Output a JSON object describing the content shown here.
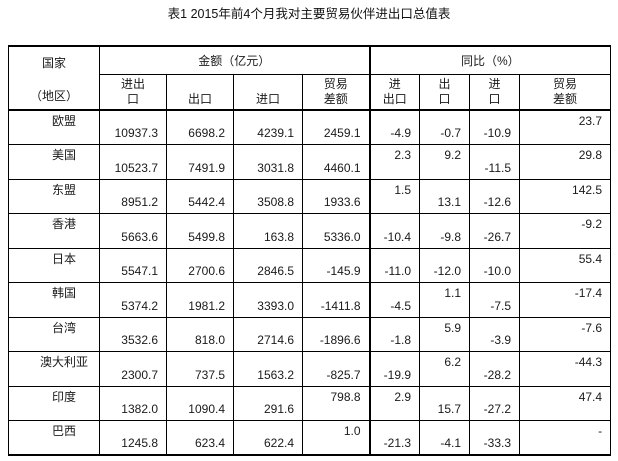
{
  "page": {
    "background": "#ffffff",
    "text_color": "#1a1a1a",
    "border_color": "#000000"
  },
  "title": "表1 2015年前4个月我对主要贸易伙伴进出口总值表",
  "table": {
    "corner": {
      "line1": "国家",
      "line2": "（地区）"
    },
    "groups": {
      "amount": "金额（亿元）",
      "yoy": "同比（%）"
    },
    "sub_headers": [
      "进出\n口",
      "出口",
      "进口",
      "贸易\n差额",
      "进\n出口",
      "出\n口",
      "进\n口",
      "贸易\n差额"
    ],
    "rows": [
      {
        "name": "欧盟",
        "values": [
          "10937.3",
          "6698.2",
          "4239.1",
          "2459.1",
          "-4.9",
          "-0.7",
          "-10.9",
          "23.7"
        ],
        "pos": [
          "b",
          "b",
          "b",
          "b",
          "b",
          "b",
          "b",
          "t"
        ]
      },
      {
        "name": "美国",
        "values": [
          "10523.7",
          "7491.9",
          "3031.8",
          "4460.1",
          "2.3",
          "9.2",
          "-11.5",
          "29.8"
        ],
        "pos": [
          "b",
          "b",
          "b",
          "b",
          "t",
          "t",
          "b",
          "t"
        ]
      },
      {
        "name": "东盟",
        "values": [
          "8951.2",
          "5442.4",
          "3508.8",
          "1933.6",
          "1.5",
          "13.1",
          "-12.6",
          "142.5"
        ],
        "pos": [
          "b",
          "b",
          "b",
          "b",
          "t",
          "b",
          "b",
          "t"
        ]
      },
      {
        "name": "香港",
        "values": [
          "5663.6",
          "5499.8",
          "163.8",
          "5336.0",
          "-10.4",
          "-9.8",
          "-26.7",
          "-9.2"
        ],
        "pos": [
          "b",
          "b",
          "b",
          "b",
          "b",
          "b",
          "b",
          "t"
        ]
      },
      {
        "name": "日本",
        "values": [
          "5547.1",
          "2700.6",
          "2846.5",
          "-145.9",
          "-11.0",
          "-12.0",
          "-10.0",
          "55.4"
        ],
        "pos": [
          "b",
          "b",
          "b",
          "b",
          "b",
          "b",
          "b",
          "t"
        ]
      },
      {
        "name": "韩国",
        "values": [
          "5374.2",
          "1981.2",
          "3393.0",
          "-1411.8",
          "-4.5",
          "1.1",
          "-7.5",
          "-17.4"
        ],
        "pos": [
          "b",
          "b",
          "b",
          "b",
          "b",
          "t",
          "b",
          "t"
        ]
      },
      {
        "name": "台湾",
        "values": [
          "3532.6",
          "818.0",
          "2714.6",
          "-1896.6",
          "-1.8",
          "5.9",
          "-3.9",
          "-7.6"
        ],
        "pos": [
          "b",
          "b",
          "b",
          "b",
          "b",
          "t",
          "b",
          "t"
        ]
      },
      {
        "name": "澳大利亚",
        "values": [
          "2300.7",
          "737.5",
          "1563.2",
          "-825.7",
          "-19.9",
          "6.2",
          "-28.2",
          "-44.3"
        ],
        "pos": [
          "b",
          "b",
          "b",
          "b",
          "b",
          "t",
          "b",
          "t"
        ]
      },
      {
        "name": "印度",
        "values": [
          "1382.0",
          "1090.4",
          "291.6",
          "798.8",
          "2.9",
          "15.7",
          "-27.2",
          "47.4"
        ],
        "pos": [
          "b",
          "b",
          "b",
          "t",
          "t",
          "b",
          "b",
          "t"
        ]
      },
      {
        "name": "巴西",
        "values": [
          "1245.8",
          "623.4",
          "622.4",
          "1.0",
          "-21.3",
          "-4.1",
          "-33.3",
          "-"
        ],
        "pos": [
          "b",
          "b",
          "b",
          "t",
          "b",
          "b",
          "b",
          "t"
        ]
      }
    ]
  },
  "chart_data": {
    "type": "table",
    "title": "表1 2015年前4个月我对主要贸易伙伴进出口总值表",
    "column_groups": [
      "金额（亿元）",
      "同比（%）"
    ],
    "columns": [
      "国家（地区）",
      "金额-进出口",
      "金额-出口",
      "金额-进口",
      "金额-贸易差额",
      "同比-进出口",
      "同比-出口",
      "同比-进口",
      "同比-贸易差额"
    ],
    "rows": [
      [
        "欧盟",
        10937.3,
        6698.2,
        4239.1,
        2459.1,
        -4.9,
        -0.7,
        -10.9,
        23.7
      ],
      [
        "美国",
        10523.7,
        7491.9,
        3031.8,
        4460.1,
        2.3,
        9.2,
        -11.5,
        29.8
      ],
      [
        "东盟",
        8951.2,
        5442.4,
        3508.8,
        1933.6,
        1.5,
        13.1,
        -12.6,
        142.5
      ],
      [
        "香港",
        5663.6,
        5499.8,
        163.8,
        5336.0,
        -10.4,
        -9.8,
        -26.7,
        -9.2
      ],
      [
        "日本",
        5547.1,
        2700.6,
        2846.5,
        -145.9,
        -11.0,
        -12.0,
        -10.0,
        55.4
      ],
      [
        "韩国",
        5374.2,
        1981.2,
        3393.0,
        -1411.8,
        -4.5,
        1.1,
        -7.5,
        -17.4
      ],
      [
        "台湾",
        3532.6,
        818.0,
        2714.6,
        -1896.6,
        -1.8,
        5.9,
        -3.9,
        -7.6
      ],
      [
        "澳大利亚",
        2300.7,
        737.5,
        1563.2,
        -825.7,
        -19.9,
        6.2,
        -28.2,
        -44.3
      ],
      [
        "印度",
        1382.0,
        1090.4,
        291.6,
        798.8,
        2.9,
        15.7,
        -27.2,
        47.4
      ],
      [
        "巴西",
        1245.8,
        623.4,
        622.4,
        1.0,
        -21.3,
        -4.1,
        -33.3,
        "-"
      ]
    ]
  }
}
